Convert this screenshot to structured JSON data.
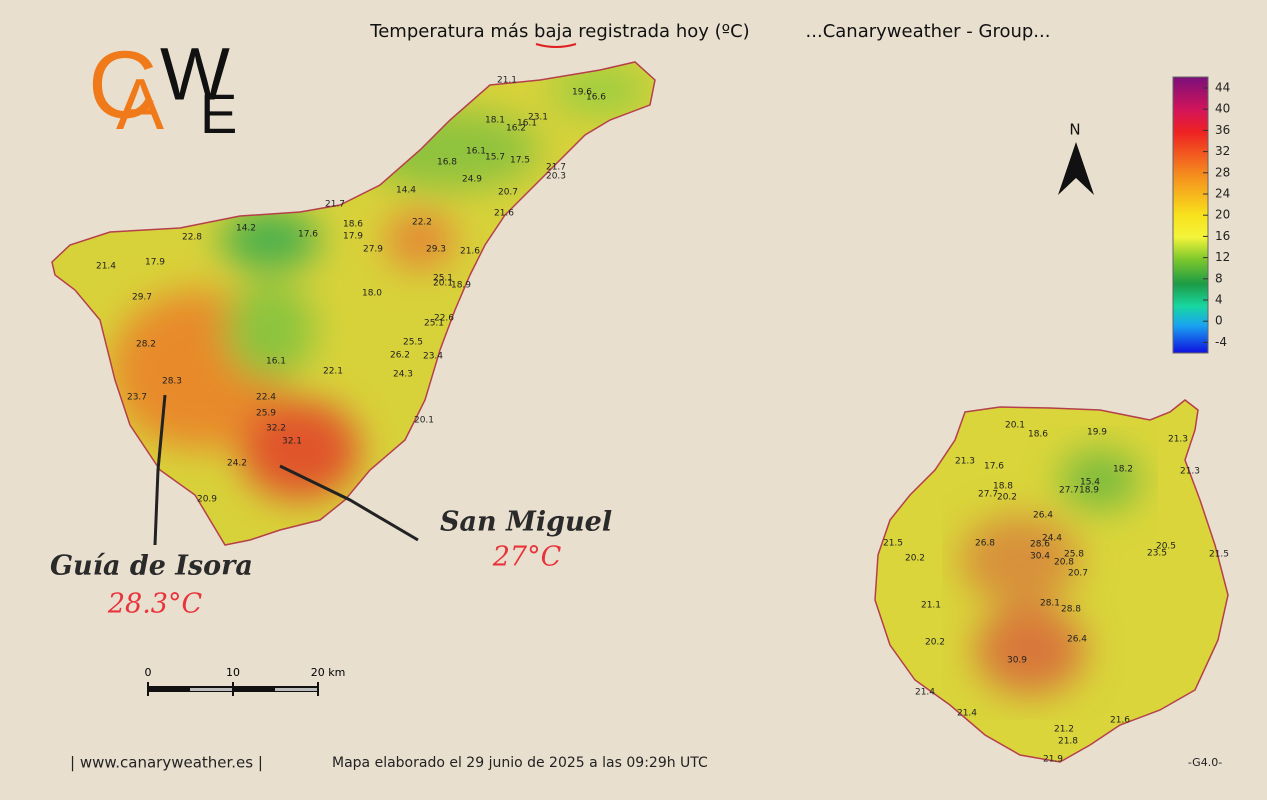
{
  "header": {
    "title": "Temperatura más baja registrada hoy (ºC)",
    "group": "...Canaryweather - Group..."
  },
  "logo": [
    "C",
    "A",
    "W",
    "E"
  ],
  "north": "N",
  "legend": {
    "ticks": [
      "44",
      "40",
      "36",
      "32",
      "28",
      "24",
      "20",
      "16",
      "12",
      "8",
      "4",
      "0",
      "-4"
    ]
  },
  "scale": {
    "labels": [
      "0",
      "10",
      "20 km"
    ]
  },
  "annotations": [
    {
      "name": "Guía de Isora",
      "value": "28.3°C"
    },
    {
      "name": "San Miguel",
      "value": "27°C"
    }
  ],
  "tenerife_stations": [
    "21.1",
    "19.6",
    "16.6",
    "18.1",
    "16.1",
    "23.1",
    "16.2",
    "16.1",
    "15.7",
    "17.5",
    "16.8",
    "21.7",
    "20.3",
    "24.9",
    "14.4",
    "20.7",
    "21.7",
    "21.6",
    "18.6",
    "22.2",
    "14.2",
    "17.6",
    "17.9",
    "22.8",
    "27.9",
    "29.3",
    "21.6",
    "21.4",
    "17.9",
    "25.1",
    "20.1",
    "18.9",
    "18.0",
    "29.7",
    "22.6",
    "25.1",
    "25.5",
    "28.2",
    "26.2",
    "23.4",
    "16.1",
    "22.1",
    "24.3",
    "28.3",
    "23.7",
    "22.4",
    "25.9",
    "20.1",
    "32.2",
    "32.1",
    "24.2",
    "20.9"
  ],
  "grancanaria_stations": [
    "20.1",
    "18.6",
    "19.9",
    "21.3",
    "21.3",
    "17.6",
    "18.2",
    "21.3",
    "18.8",
    "15.4",
    "27.7",
    "20.2",
    "27.7",
    "18.9",
    "26.4",
    "24.4",
    "26.8",
    "28.6",
    "21.5",
    "30.4",
    "25.8",
    "20.5",
    "23.5",
    "21.5",
    "20.2",
    "20.8",
    "20.7",
    "28.1",
    "28.8",
    "21.1",
    "26.4",
    "20.2",
    "30.9",
    "21.4",
    "21.4",
    "21.6",
    "21.2",
    "21.8",
    "21.9"
  ],
  "footer": {
    "site": "| www.canaryweather.es |",
    "made": "Mapa elaborado el 29 junio de 2025 a las 09:29h UTC",
    "version": "-G4.0-"
  }
}
